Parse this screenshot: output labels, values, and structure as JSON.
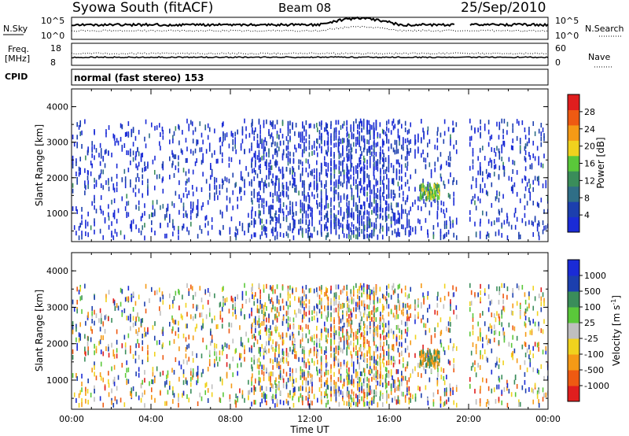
{
  "header": {
    "station": "Syowa South (fitACF)",
    "beam": "Beam 08",
    "date": "25/Sep/2010"
  },
  "noise_panel": {
    "left_label": "N.Sky",
    "right_label": "N.Search",
    "left_ticks": [
      "10^5",
      "10^0"
    ],
    "right_ticks": [
      "10^5",
      "10^0"
    ]
  },
  "freq_panel": {
    "left_label_1": "Freq.",
    "left_label_2": "[MHz]",
    "right_label": "Nave",
    "left_ticks": [
      "18",
      "8"
    ],
    "right_ticks": [
      "60",
      "0"
    ]
  },
  "cpid": {
    "label": "CPID",
    "mode": "normal (fast stereo) 153"
  },
  "colors": {
    "power": [
      "#1a2bd6",
      "#1c3fae",
      "#2f6e86",
      "#3a8d5a",
      "#5ac83a",
      "#f0d21e",
      "#f59a16",
      "#ee5a12",
      "#e01e1e"
    ],
    "velocity": [
      "#e01e1e",
      "#ee5a12",
      "#f59a16",
      "#f0d21e",
      "#bfbfbf",
      "#5ac83a",
      "#3a8d5a",
      "#1c3fae",
      "#1a2bd6"
    ]
  },
  "chart_data": [
    {
      "type": "heatmap",
      "title": "",
      "ylabel": "Slant Range [km]",
      "xlabel": "",
      "x_ticks": [
        "00:00",
        "04:00",
        "08:00",
        "12:00",
        "16:00",
        "20:00",
        "00:00"
      ],
      "y_ticks": [
        "1000",
        "2000",
        "3000",
        "4000"
      ],
      "ylim": [
        200,
        4500
      ],
      "colorbar": {
        "label": "Power [dB]",
        "ticks": [
          "4",
          "8",
          "12",
          "16",
          "20",
          "24",
          "28"
        ],
        "range": [
          0,
          30
        ]
      },
      "features": [
        {
          "time_hours": [
            17.5,
            18.5
          ],
          "range_km": [
            1400,
            1800
          ],
          "power_db": [
            12,
            18
          ]
        }
      ],
      "data_gaps_hours": [
        [
          19.5,
          20.0
        ]
      ]
    },
    {
      "type": "heatmap",
      "title": "",
      "ylabel": "Slant Range [km]",
      "xlabel": "Time UT",
      "x_ticks": [
        "00:00",
        "04:00",
        "08:00",
        "12:00",
        "16:00",
        "20:00",
        "00:00"
      ],
      "y_ticks": [
        "1000",
        "2000",
        "3000",
        "4000"
      ],
      "ylim": [
        200,
        4500
      ],
      "colorbar": {
        "label": "Velocity [m s",
        "label_exp": "-1",
        "label_end": "]",
        "ticks": [
          "1000",
          "500",
          "100",
          "25",
          "-25",
          "-100",
          "-500",
          "-1000"
        ]
      },
      "features": [
        {
          "time_hours": [
            17.5,
            18.5
          ],
          "range_km": [
            1400,
            1800
          ],
          "velocity_ms": [
            -500,
            100
          ]
        }
      ],
      "data_gaps_hours": [
        [
          19.5,
          20.0
        ]
      ]
    }
  ]
}
